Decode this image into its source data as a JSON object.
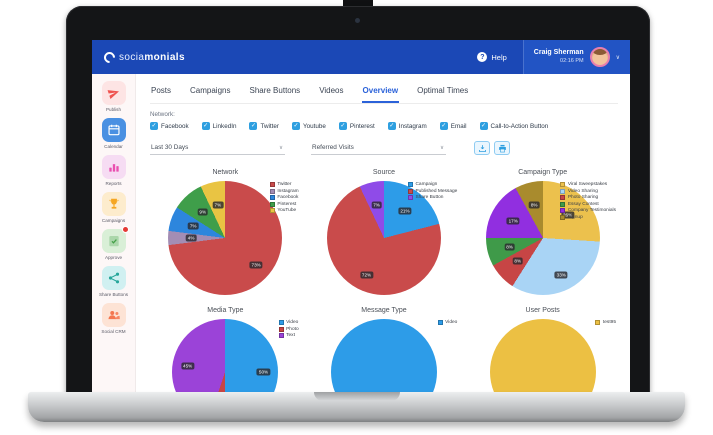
{
  "topbar": {
    "brand": {
      "regular": "socia",
      "bold": "monials"
    },
    "help_label": "Help",
    "user": {
      "name": "Craig Sherman",
      "time": "02:16 PM"
    }
  },
  "sidebar": {
    "items": [
      {
        "label": "Publish",
        "icon": "paper-plane-icon",
        "fg": "#ef5350",
        "bg": "#fde4e4",
        "active": false,
        "badge": false
      },
      {
        "label": "Calendar",
        "icon": "calendar-icon",
        "fg": "#ffffff",
        "bg": "#4a90e2",
        "active": false,
        "badge": false
      },
      {
        "label": "Reports",
        "icon": "chart-bars-icon",
        "fg": "#e94fb0",
        "bg": "#f6dcf3",
        "active": true,
        "badge": false
      },
      {
        "label": "Campaigns",
        "icon": "trophy-icon",
        "fg": "#f5a623",
        "bg": "#fdeccd",
        "active": false,
        "badge": false
      },
      {
        "label": "Approve",
        "icon": "approve-icon",
        "fg": "#43a047",
        "bg": "#d9efd7",
        "active": false,
        "badge": true
      },
      {
        "label": "Share Buttons",
        "icon": "share-icon",
        "fg": "#26a69a",
        "bg": "#d0f0f1",
        "active": false,
        "badge": false
      },
      {
        "label": "Social CRM",
        "icon": "people-icon",
        "fg": "#f4764f",
        "bg": "#fde3d5",
        "active": false,
        "badge": false
      }
    ]
  },
  "tabs": {
    "items": [
      "Posts",
      "Campaigns",
      "Share Buttons",
      "Videos",
      "Overview",
      "Optimal Times"
    ],
    "active_index": 4
  },
  "filters": {
    "network_label": "Network:",
    "networks": [
      "Facebook",
      "LinkedIn",
      "Twitter",
      "Youtube",
      "Pinterest",
      "Instagram",
      "Email",
      "Call-to-Action Button"
    ],
    "all_checked": true,
    "date_range": "Last 30 Days",
    "metric": "Referred Visits",
    "toolbar_icons": [
      "export-icon",
      "print-icon"
    ]
  },
  "accent_colors": {
    "topbar_blue": "#1b48b6",
    "active_tab_blue": "#2b62d9",
    "checkbox_blue": "#2e9fe0"
  },
  "chart_data": [
    {
      "type": "pie",
      "title": "Network",
      "legend_position": "right",
      "slices": [
        {
          "label": "Twitter",
          "value": 73,
          "color": "#c94b4b"
        },
        {
          "label": "Instagram",
          "value": 4,
          "color": "#a38db4"
        },
        {
          "label": "Facebook",
          "value": 7,
          "color": "#2d86dd"
        },
        {
          "label": "Pinterest",
          "value": 9,
          "color": "#3f9e4a"
        },
        {
          "label": "YouTube",
          "value": 7,
          "color": "#e9c443"
        }
      ]
    },
    {
      "type": "pie",
      "title": "Source",
      "legend_position": "right",
      "slices": [
        {
          "label": "Campaign",
          "value": 21,
          "color": "#2d9ce8"
        },
        {
          "label": "Published Message",
          "value": 72,
          "color": "#c94b4b"
        },
        {
          "label": "Share Button",
          "value": 7,
          "color": "#8f4be8"
        }
      ]
    },
    {
      "type": "pie",
      "title": "Campaign Type",
      "legend_position": "right",
      "slices": [
        {
          "label": "Viral Sweepstakes",
          "value": 26,
          "color": "#ecc14d"
        },
        {
          "label": "Video Sharing",
          "value": 33,
          "color": "#a9d4f5"
        },
        {
          "label": "Photo Sharing",
          "value": 8,
          "color": "#c74545"
        },
        {
          "label": "Essay Contest",
          "value": 8,
          "color": "#3f9a49"
        },
        {
          "label": "Company Testimonials",
          "value": 17,
          "color": "#912fe0"
        },
        {
          "label": "Signup",
          "value": 8,
          "color": "#a98b2d"
        }
      ]
    },
    {
      "type": "pie",
      "title": "Media Type",
      "legend_position": "right",
      "slices": [
        {
          "label": "Video",
          "value": 50,
          "color": "#2d9ce8"
        },
        {
          "label": "Photo",
          "value": 5,
          "color": "#c74545"
        },
        {
          "label": "Text",
          "value": 45,
          "color": "#9b43d8"
        }
      ]
    },
    {
      "type": "pie",
      "title": "Message Type",
      "legend_position": "right",
      "slices": [
        {
          "label": "Video",
          "value": 100,
          "color": "#2d9ce8"
        }
      ]
    },
    {
      "type": "pie",
      "title": "User Posts",
      "legend_position": "right",
      "slices": [
        {
          "label": "test95",
          "value": 100,
          "color": "#ecc043"
        }
      ]
    }
  ]
}
